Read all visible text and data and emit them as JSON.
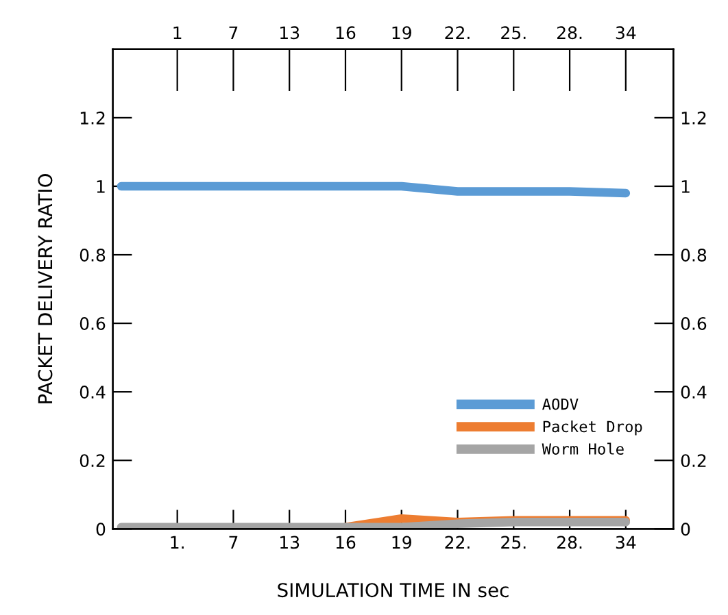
{
  "chart_data": {
    "type": "line",
    "xlabel": "SIMULATION TIME IN sec",
    "ylabel": "PACKET DELIVERY RATIO",
    "categories": [
      null,
      "1.",
      "7",
      "13",
      "16",
      "19",
      "22.",
      "25.",
      "28.",
      "34"
    ],
    "annotations": [
      "1",
      "7",
      "13",
      "16",
      "19",
      "22.",
      "25.",
      "28.",
      "34"
    ],
    "ylim": [
      0,
      1.4
    ],
    "yticks": [
      0,
      0.2,
      0.4,
      0.6,
      0.8,
      1,
      1.2
    ],
    "y2lim": [
      0,
      1.4
    ],
    "y2ticks": [
      0,
      0.2,
      0.4,
      0.6,
      0.8,
      1,
      1.2
    ],
    "grid": false,
    "legend": "bottom right",
    "marker": "none",
    "line_style": "solid",
    "series": [
      {
        "name": "AODV",
        "color": "#5b9bd5",
        "values": [
          1,
          1,
          1,
          1,
          1,
          1,
          0.985,
          0.985,
          0.985,
          0.98
        ]
      },
      {
        "name": "Packet Drop",
        "color": "#ed7d31",
        "values": [
          null,
          null,
          null,
          null,
          0.005,
          0.03,
          0.02,
          0.025,
          0.025,
          0.025
        ]
      },
      {
        "name": "Worm Hole",
        "color": "#a5a5a5",
        "values": [
          0.005,
          0.005,
          0.005,
          0.005,
          0.005,
          0.005,
          0.015,
          0.02,
          0.02,
          0.02
        ]
      }
    ]
  }
}
